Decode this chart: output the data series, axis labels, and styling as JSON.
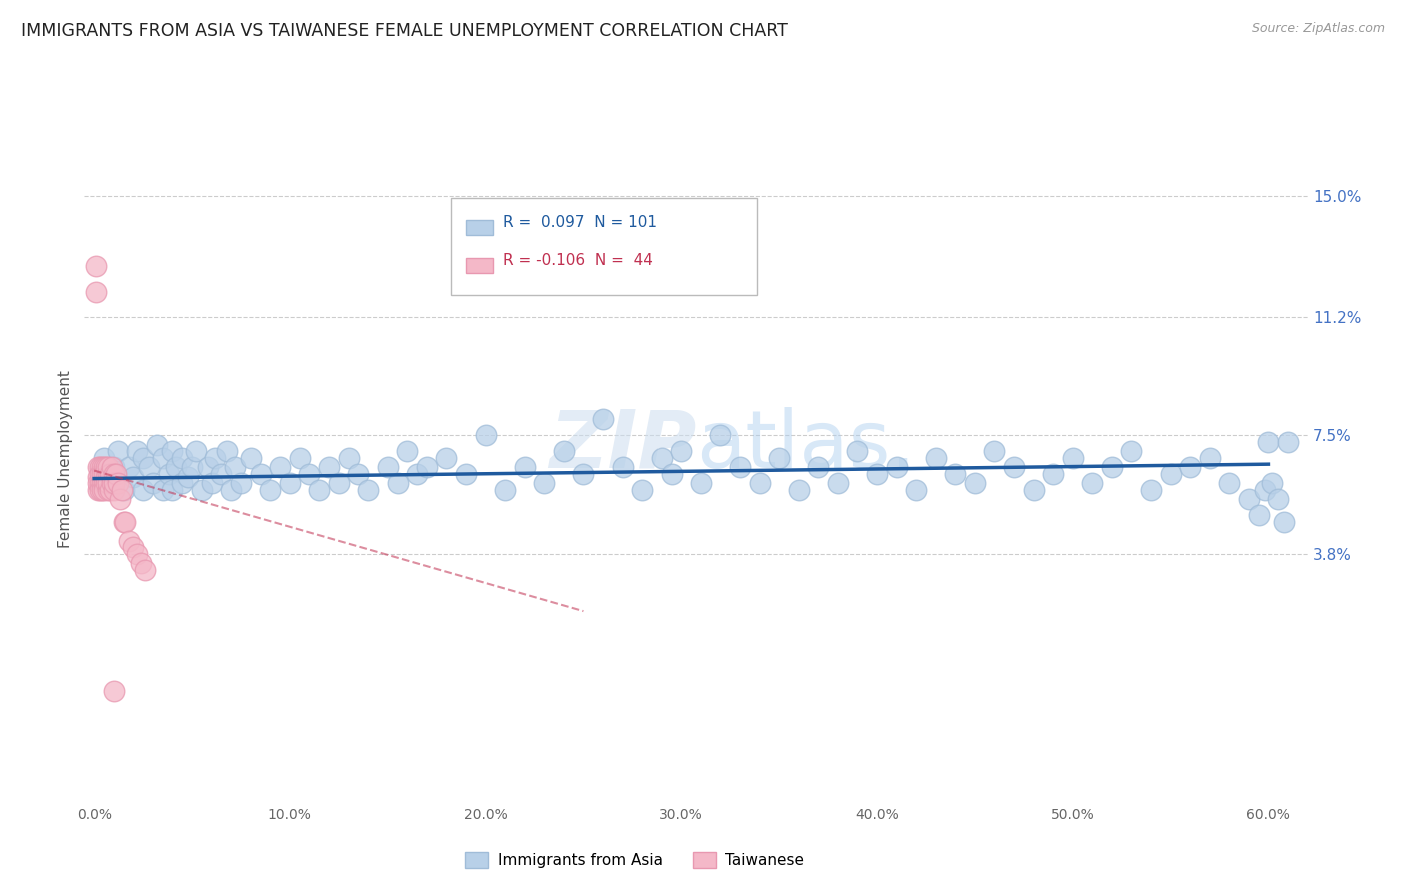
{
  "title": "IMMIGRANTS FROM ASIA VS TAIWANESE FEMALE UNEMPLOYMENT CORRELATION CHART",
  "source": "Source: ZipAtlas.com",
  "ylabel": "Female Unemployment",
  "xlim": [
    -0.005,
    0.62
  ],
  "ylim": [
    -0.04,
    0.175
  ],
  "yticks": [
    0.038,
    0.075,
    0.112,
    0.15
  ],
  "ytick_labels": [
    "3.8%",
    "7.5%",
    "11.2%",
    "15.0%"
  ],
  "xticks": [
    0.0,
    0.1,
    0.2,
    0.3,
    0.4,
    0.5,
    0.6
  ],
  "xtick_labels": [
    "0.0%",
    "10.0%",
    "20.0%",
    "30.0%",
    "40.0%",
    "50.0%",
    "60.0%"
  ],
  "legend_labels": [
    "Immigrants from Asia",
    "Taiwanese"
  ],
  "R_blue": 0.097,
  "N_blue": 101,
  "R_pink": -0.106,
  "N_pink": 44,
  "blue_color": "#b8d0e8",
  "blue_edge_color": "#a0bcd8",
  "blue_line_color": "#1f5a9e",
  "pink_color": "#f4b8c8",
  "pink_edge_color": "#e898b0",
  "pink_line_color": "#c03050",
  "watermark_color": "#ddeeff",
  "background_color": "#ffffff",
  "grid_color": "#cccccc",
  "title_fontsize": 12.5,
  "axis_label_fontsize": 11,
  "tick_right_color": "#4472c4",
  "blue_scatter_x": [
    0.005,
    0.008,
    0.01,
    0.012,
    0.015,
    0.018,
    0.02,
    0.022,
    0.025,
    0.025,
    0.028,
    0.03,
    0.032,
    0.035,
    0.035,
    0.038,
    0.04,
    0.04,
    0.042,
    0.045,
    0.045,
    0.048,
    0.05,
    0.052,
    0.055,
    0.058,
    0.06,
    0.062,
    0.065,
    0.068,
    0.07,
    0.072,
    0.075,
    0.08,
    0.085,
    0.09,
    0.095,
    0.1,
    0.105,
    0.11,
    0.115,
    0.12,
    0.125,
    0.13,
    0.135,
    0.14,
    0.15,
    0.155,
    0.16,
    0.165,
    0.17,
    0.18,
    0.19,
    0.2,
    0.21,
    0.22,
    0.23,
    0.24,
    0.25,
    0.26,
    0.27,
    0.28,
    0.29,
    0.295,
    0.3,
    0.31,
    0.32,
    0.33,
    0.34,
    0.35,
    0.36,
    0.37,
    0.38,
    0.39,
    0.4,
    0.41,
    0.42,
    0.43,
    0.44,
    0.45,
    0.46,
    0.47,
    0.48,
    0.49,
    0.5,
    0.51,
    0.52,
    0.53,
    0.54,
    0.55,
    0.56,
    0.57,
    0.58,
    0.59,
    0.595,
    0.598,
    0.6,
    0.602,
    0.605,
    0.608,
    0.61
  ],
  "blue_scatter_y": [
    0.068,
    0.062,
    0.065,
    0.07,
    0.058,
    0.065,
    0.062,
    0.07,
    0.058,
    0.068,
    0.065,
    0.06,
    0.072,
    0.058,
    0.068,
    0.063,
    0.07,
    0.058,
    0.065,
    0.06,
    0.068,
    0.062,
    0.065,
    0.07,
    0.058,
    0.065,
    0.06,
    0.068,
    0.063,
    0.07,
    0.058,
    0.065,
    0.06,
    0.068,
    0.063,
    0.058,
    0.065,
    0.06,
    0.068,
    0.063,
    0.058,
    0.065,
    0.06,
    0.068,
    0.063,
    0.058,
    0.065,
    0.06,
    0.07,
    0.063,
    0.065,
    0.068,
    0.063,
    0.075,
    0.058,
    0.065,
    0.06,
    0.07,
    0.063,
    0.08,
    0.065,
    0.058,
    0.068,
    0.063,
    0.07,
    0.06,
    0.075,
    0.065,
    0.06,
    0.068,
    0.058,
    0.065,
    0.06,
    0.07,
    0.063,
    0.065,
    0.058,
    0.068,
    0.063,
    0.06,
    0.07,
    0.065,
    0.058,
    0.063,
    0.068,
    0.06,
    0.065,
    0.07,
    0.058,
    0.063,
    0.065,
    0.068,
    0.06,
    0.055,
    0.05,
    0.058,
    0.073,
    0.06,
    0.055,
    0.048,
    0.073
  ],
  "pink_scatter_x": [
    0.001,
    0.001,
    0.002,
    0.002,
    0.002,
    0.002,
    0.003,
    0.003,
    0.003,
    0.003,
    0.004,
    0.004,
    0.004,
    0.004,
    0.005,
    0.005,
    0.005,
    0.005,
    0.006,
    0.006,
    0.006,
    0.007,
    0.007,
    0.007,
    0.007,
    0.008,
    0.008,
    0.009,
    0.009,
    0.01,
    0.01,
    0.01,
    0.01,
    0.011,
    0.012,
    0.013,
    0.014,
    0.015,
    0.016,
    0.018,
    0.02,
    0.022,
    0.024,
    0.026
  ],
  "pink_scatter_y": [
    0.128,
    0.12,
    0.065,
    0.062,
    0.058,
    0.06,
    0.065,
    0.06,
    0.063,
    0.058,
    0.065,
    0.06,
    0.063,
    0.058,
    0.065,
    0.06,
    0.063,
    0.058,
    0.065,
    0.062,
    0.06,
    0.063,
    0.058,
    0.065,
    0.06,
    0.063,
    0.058,
    0.065,
    0.06,
    0.063,
    0.058,
    0.06,
    -0.005,
    0.063,
    0.06,
    0.055,
    0.058,
    0.048,
    0.048,
    0.042,
    0.04,
    0.038,
    0.035,
    0.033
  ],
  "blue_trend_x": [
    0.0,
    0.6
  ],
  "blue_trend_y": [
    0.0615,
    0.066
  ],
  "pink_trend_x": [
    0.0,
    0.25
  ],
  "pink_trend_y": [
    0.064,
    0.02
  ]
}
